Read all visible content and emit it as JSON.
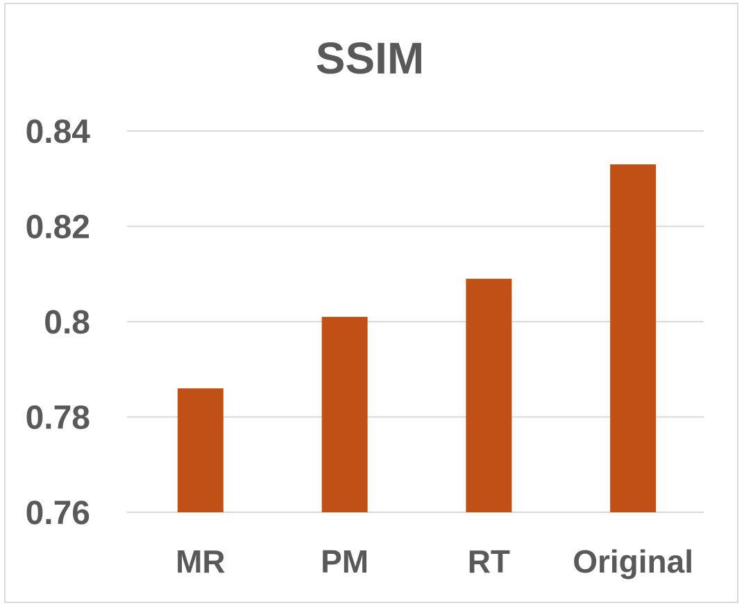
{
  "chart_data": {
    "type": "bar",
    "title": "SSIM",
    "xlabel": "",
    "ylabel": "",
    "categories": [
      "MR",
      "PM",
      "RT",
      "Original"
    ],
    "series": [
      {
        "values": [
          0.786,
          0.801,
          0.809,
          0.833
        ]
      }
    ],
    "ylim": [
      0.76,
      0.84
    ],
    "yticks": [
      "0.76",
      "0.78",
      "0.8",
      "0.82",
      "0.84"
    ],
    "grid": true,
    "legend": "none",
    "bar_color": "#C0504D",
    "bar_fill": "#C05016",
    "grid_color": "#D9D9D9",
    "text_color": "#595959"
  }
}
